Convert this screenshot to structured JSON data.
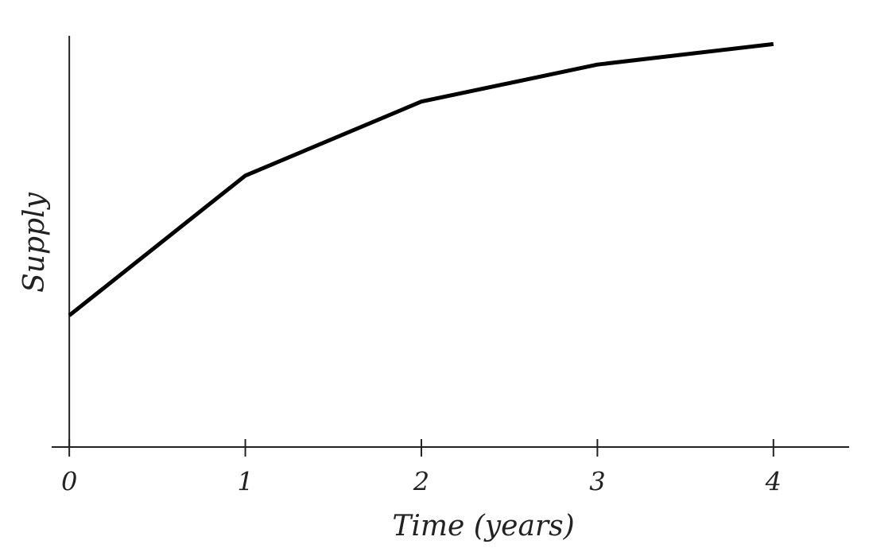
{
  "chart_data": {
    "type": "line",
    "x_label": "Time (years)",
    "y_label": "Supply",
    "x": [
      0,
      1,
      2,
      3,
      4
    ],
    "series": [
      {
        "color": "#000000",
        "values": [
          3.2,
          6.6,
          8.4,
          9.3,
          9.8
        ]
      }
    ],
    "xlim": [
      -0.1,
      4.43
    ],
    "ylim": [
      0,
      10
    ],
    "xticks": [
      0,
      1,
      2,
      3,
      4
    ],
    "grid": false
  }
}
